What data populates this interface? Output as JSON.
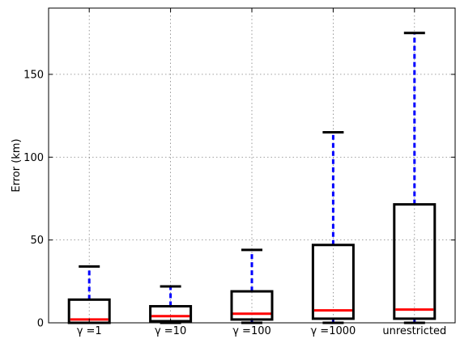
{
  "chart_data": {
    "type": "box",
    "title": "",
    "xlabel": "",
    "ylabel": "Error (km)",
    "ylim": [
      0,
      190
    ],
    "yticks": [
      0,
      50,
      100,
      150
    ],
    "grid": true,
    "categories": [
      "γ =1",
      "γ =10",
      "γ =100",
      "γ =1000",
      "unrestricted"
    ],
    "boxes": [
      {
        "whisker_low": 0,
        "q1": 0,
        "median": 2,
        "q3": 14,
        "whisker_high": 34
      },
      {
        "whisker_low": 0,
        "q1": 1,
        "median": 4,
        "q3": 10,
        "whisker_high": 22
      },
      {
        "whisker_low": 0,
        "q1": 2,
        "median": 5.5,
        "q3": 19,
        "whisker_high": 44
      },
      {
        "whisker_low": 0,
        "q1": 2.5,
        "median": 7.5,
        "q3": 47,
        "whisker_high": 115
      },
      {
        "whisker_low": 0,
        "q1": 2.5,
        "median": 8,
        "q3": 71.5,
        "whisker_high": 175
      }
    ],
    "colors": {
      "box": "#000000",
      "median": "#ff0000",
      "whisker": "#0000ff",
      "cap": "#000000",
      "grid": "#808080"
    }
  }
}
